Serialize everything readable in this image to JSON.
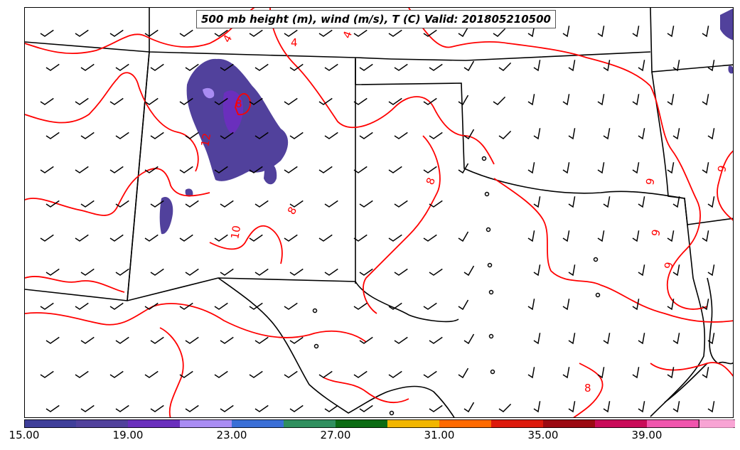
{
  "title": "500 mb height (m), wind (m/s), T (C) Valid: 201805210500",
  "colorbar": {
    "colors": [
      "#3f3f9a",
      "#51419c",
      "#6a2fbd",
      "#a98cf3",
      "#3a6fd6",
      "#2f8f5e",
      "#0b6b13",
      "#f2b600",
      "#ff6a00",
      "#dd1a0c",
      "#9b0a12",
      "#c90b59",
      "#f055ad",
      "#f8a4d4"
    ],
    "tick_labels": [
      "15.00",
      "19.00",
      "23.00",
      "27.00",
      "31.00",
      "35.00",
      "39.00"
    ]
  },
  "contour_labels": [
    "4",
    "4",
    "4",
    "8",
    "8",
    "8",
    "8",
    "9",
    "9",
    "9",
    "9",
    "10",
    "12"
  ],
  "colors": {
    "contour": "#ff0000",
    "boundary": "#000000",
    "barb": "#000000"
  }
}
